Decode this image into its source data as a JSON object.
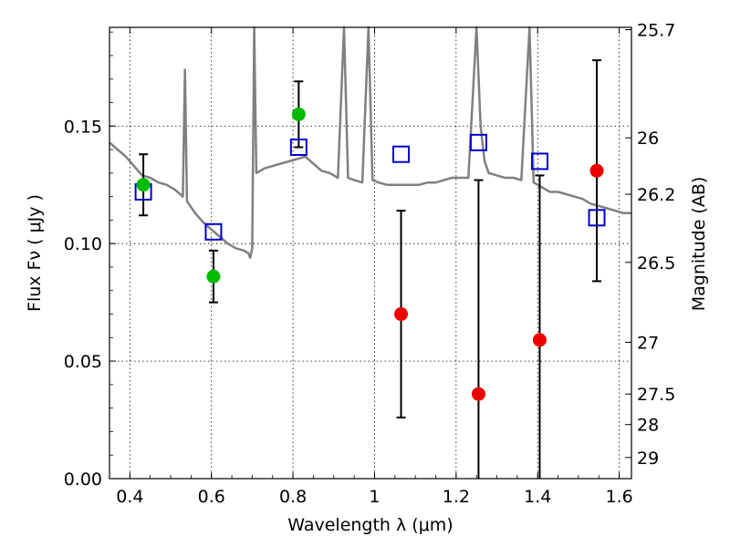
{
  "chart_data": {
    "type": "scatter",
    "xlabel": "Wavelength  λ (μm)",
    "ylabel": "Flux  Fν ( μJy )",
    "y2label": "Magnitude (AB)",
    "xlim": [
      0.35,
      1.63
    ],
    "ylim": [
      0.0,
      0.192
    ],
    "x_ticks": [
      0.4,
      0.6,
      0.8,
      1.0,
      1.2,
      1.4,
      1.6
    ],
    "x_tick_labels": [
      "0.4",
      "0.6",
      "0.8",
      "1",
      "1.2",
      "1.4",
      "1.6"
    ],
    "y_ticks": [
      0.0,
      0.05,
      0.1,
      0.15
    ],
    "y_tick_labels": [
      "0.00",
      "0.05",
      "0.10",
      "0.15"
    ],
    "y2_ticks": [
      {
        "label": "25.7",
        "flux": 0.191
      },
      {
        "label": "26",
        "flux": 0.145
      },
      {
        "label": "26.2",
        "flux": 0.121
      },
      {
        "label": "26.5",
        "flux": 0.092
      },
      {
        "label": "27",
        "flux": 0.058
      },
      {
        "label": "27.5",
        "flux": 0.036
      },
      {
        "label": "28",
        "flux": 0.023
      },
      {
        "label": "29",
        "flux": 0.009
      }
    ],
    "grid": true,
    "series": [
      {
        "marker": "line",
        "color": "#808080",
        "points": [
          [
            0.35,
            0.143
          ],
          [
            0.37,
            0.14
          ],
          [
            0.39,
            0.137
          ],
          [
            0.41,
            0.133
          ],
          [
            0.43,
            0.129
          ],
          [
            0.45,
            0.128
          ],
          [
            0.47,
            0.126
          ],
          [
            0.49,
            0.125
          ],
          [
            0.51,
            0.123
          ],
          [
            0.53,
            0.12
          ],
          [
            0.535,
            0.174
          ],
          [
            0.54,
            0.118
          ],
          [
            0.56,
            0.113
          ],
          [
            0.58,
            0.109
          ],
          [
            0.6,
            0.106
          ],
          [
            0.62,
            0.103
          ],
          [
            0.64,
            0.1
          ],
          [
            0.66,
            0.098
          ],
          [
            0.68,
            0.097
          ],
          [
            0.69,
            0.096
          ],
          [
            0.695,
            0.094
          ],
          [
            0.7,
            0.098
          ],
          [
            0.705,
            0.192
          ],
          [
            0.71,
            0.13
          ],
          [
            0.73,
            0.132
          ],
          [
            0.75,
            0.133
          ],
          [
            0.77,
            0.134
          ],
          [
            0.79,
            0.135
          ],
          [
            0.81,
            0.136
          ],
          [
            0.83,
            0.137
          ],
          [
            0.85,
            0.134
          ],
          [
            0.87,
            0.131
          ],
          [
            0.89,
            0.13
          ],
          [
            0.91,
            0.128
          ],
          [
            0.925,
            0.192
          ],
          [
            0.935,
            0.128
          ],
          [
            0.95,
            0.127
          ],
          [
            0.97,
            0.126
          ],
          [
            0.985,
            0.192
          ],
          [
            0.995,
            0.127
          ],
          [
            1.01,
            0.126
          ],
          [
            1.03,
            0.125
          ],
          [
            1.05,
            0.125
          ],
          [
            1.07,
            0.125
          ],
          [
            1.09,
            0.125
          ],
          [
            1.11,
            0.125
          ],
          [
            1.13,
            0.126
          ],
          [
            1.15,
            0.126
          ],
          [
            1.17,
            0.127
          ],
          [
            1.19,
            0.128
          ],
          [
            1.21,
            0.128
          ],
          [
            1.23,
            0.128
          ],
          [
            1.25,
            0.192
          ],
          [
            1.26,
            0.15
          ],
          [
            1.27,
            0.135
          ],
          [
            1.28,
            0.13
          ],
          [
            1.3,
            0.129
          ],
          [
            1.32,
            0.128
          ],
          [
            1.34,
            0.128
          ],
          [
            1.36,
            0.127
          ],
          [
            1.38,
            0.192
          ],
          [
            1.39,
            0.126
          ],
          [
            1.41,
            0.124
          ],
          [
            1.43,
            0.122
          ],
          [
            1.45,
            0.122
          ],
          [
            1.47,
            0.121
          ],
          [
            1.49,
            0.12
          ],
          [
            1.51,
            0.119
          ],
          [
            1.53,
            0.117
          ],
          [
            1.55,
            0.116
          ],
          [
            1.57,
            0.115
          ],
          [
            1.59,
            0.114
          ],
          [
            1.61,
            0.113
          ],
          [
            1.63,
            0.113
          ]
        ]
      },
      {
        "marker": "open-square",
        "color": "#0000cc",
        "points": [
          [
            0.433,
            0.122
          ],
          [
            0.605,
            0.105
          ],
          [
            0.814,
            0.141
          ],
          [
            1.065,
            0.138
          ],
          [
            1.255,
            0.143
          ],
          [
            1.405,
            0.135
          ],
          [
            1.545,
            0.111
          ]
        ]
      },
      {
        "marker": "filled-circle",
        "color": "#00bb00",
        "points": [
          {
            "x": 0.433,
            "y": 0.125,
            "err": 0.013
          },
          {
            "x": 0.605,
            "y": 0.086,
            "err": 0.011
          },
          {
            "x": 0.814,
            "y": 0.155,
            "err": 0.014
          }
        ]
      },
      {
        "marker": "filled-circle",
        "color": "#ee0000",
        "points": [
          {
            "x": 1.065,
            "y": 0.07,
            "err": 0.044
          },
          {
            "x": 1.255,
            "y": 0.036,
            "err": 0.091
          },
          {
            "x": 1.405,
            "y": 0.059,
            "err": 0.07
          },
          {
            "x": 1.545,
            "y": 0.131,
            "err": 0.047
          }
        ]
      }
    ]
  }
}
